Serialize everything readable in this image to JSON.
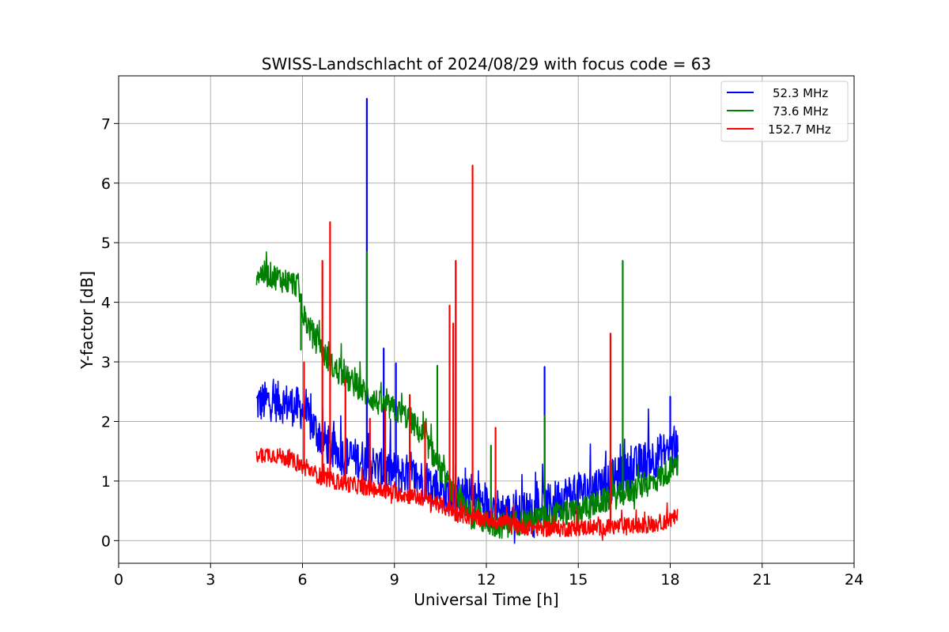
{
  "chart_data": {
    "type": "line",
    "title": "SWISS-Landschlacht of 2024/08/29 with focus code = 63",
    "xlabel": "Universal Time [h]",
    "ylabel": "Y-factor [dB]",
    "xlim": [
      0,
      24
    ],
    "ylim": [
      -0.38,
      7.8
    ],
    "xticks": [
      "0",
      "3",
      "6",
      "9",
      "12",
      "15",
      "18",
      "21",
      "24"
    ],
    "yticks": [
      "0",
      "1",
      "2",
      "3",
      "4",
      "5",
      "6",
      "7"
    ],
    "grid": true,
    "legend_position": "top-right",
    "series": [
      {
        "name": "52.3 MHz",
        "color": "#0000ff",
        "base_x": [
          4.5,
          5.0,
          5.5,
          6.0,
          6.5,
          7.0,
          7.5,
          8.0,
          8.5,
          9.0,
          9.5,
          10.0,
          10.5,
          11.0,
          11.5,
          12.0,
          12.5,
          13.0,
          13.5,
          14.0,
          14.5,
          15.0,
          15.5,
          16.0,
          16.5,
          17.0,
          17.5,
          18.0,
          18.25
        ],
        "base_y": [
          2.3,
          2.35,
          2.3,
          2.2,
          1.8,
          1.5,
          1.4,
          1.35,
          1.2,
          1.15,
          1.1,
          1.0,
          0.85,
          0.75,
          0.7,
          0.6,
          0.5,
          0.45,
          0.5,
          0.6,
          0.75,
          0.8,
          0.9,
          1.0,
          1.1,
          1.3,
          1.4,
          1.55,
          1.5
        ],
        "noise": 0.35,
        "spikes": [
          [
            8.1,
            7.42
          ],
          [
            8.65,
            3.23
          ],
          [
            9.05,
            2.98
          ],
          [
            13.9,
            2.92
          ],
          [
            18.0,
            2.42
          ]
        ]
      },
      {
        "name": "73.6 MHz",
        "color": "#008000",
        "base_x": [
          4.5,
          5.0,
          5.5,
          5.85,
          6.0,
          6.5,
          7.0,
          7.5,
          8.0,
          8.5,
          9.0,
          9.5,
          10.0,
          10.5,
          11.0,
          11.5,
          12.0,
          12.5,
          13.0,
          13.5,
          14.0,
          14.5,
          15.0,
          15.5,
          16.0,
          16.5,
          17.0,
          17.5,
          18.0,
          18.25
        ],
        "base_y": [
          4.5,
          4.45,
          4.35,
          4.3,
          3.8,
          3.3,
          2.9,
          2.7,
          2.5,
          2.3,
          2.2,
          2.05,
          1.7,
          1.2,
          0.7,
          0.45,
          0.3,
          0.25,
          0.3,
          0.35,
          0.4,
          0.45,
          0.5,
          0.6,
          0.7,
          0.8,
          0.9,
          1.0,
          1.2,
          1.25
        ],
        "noise": 0.22,
        "spikes": [
          [
            5.95,
            3.2
          ],
          [
            8.1,
            4.85
          ],
          [
            10.4,
            2.94
          ],
          [
            12.15,
            1.6
          ],
          [
            13.9,
            2.1
          ],
          [
            16.45,
            4.7
          ]
        ]
      },
      {
        "name": "152.7 MHz",
        "color": "#ff0000",
        "base_x": [
          4.5,
          5.0,
          5.5,
          6.0,
          6.5,
          7.0,
          7.5,
          8.0,
          8.5,
          9.0,
          9.5,
          10.0,
          10.5,
          11.0,
          11.5,
          12.0,
          12.5,
          13.0,
          13.5,
          14.0,
          14.5,
          15.0,
          15.5,
          16.0,
          16.5,
          17.0,
          17.5,
          18.0,
          18.25
        ],
        "base_y": [
          1.45,
          1.45,
          1.38,
          1.25,
          1.1,
          1.0,
          0.95,
          0.9,
          0.85,
          0.8,
          0.75,
          0.7,
          0.6,
          0.45,
          0.4,
          0.35,
          0.3,
          0.25,
          0.22,
          0.2,
          0.2,
          0.22,
          0.22,
          0.22,
          0.25,
          0.25,
          0.28,
          0.35,
          0.4
        ],
        "noise": 0.14,
        "spikes": [
          [
            6.05,
            3.0
          ],
          [
            6.65,
            4.7
          ],
          [
            6.9,
            5.35
          ],
          [
            7.4,
            2.7
          ],
          [
            8.2,
            2.05
          ],
          [
            8.7,
            2.2
          ],
          [
            9.5,
            2.45
          ],
          [
            10.0,
            2.0
          ],
          [
            10.8,
            3.95
          ],
          [
            10.92,
            3.65
          ],
          [
            11.0,
            4.7
          ],
          [
            11.55,
            6.3
          ],
          [
            12.3,
            1.9
          ],
          [
            16.05,
            3.48
          ]
        ]
      }
    ]
  }
}
